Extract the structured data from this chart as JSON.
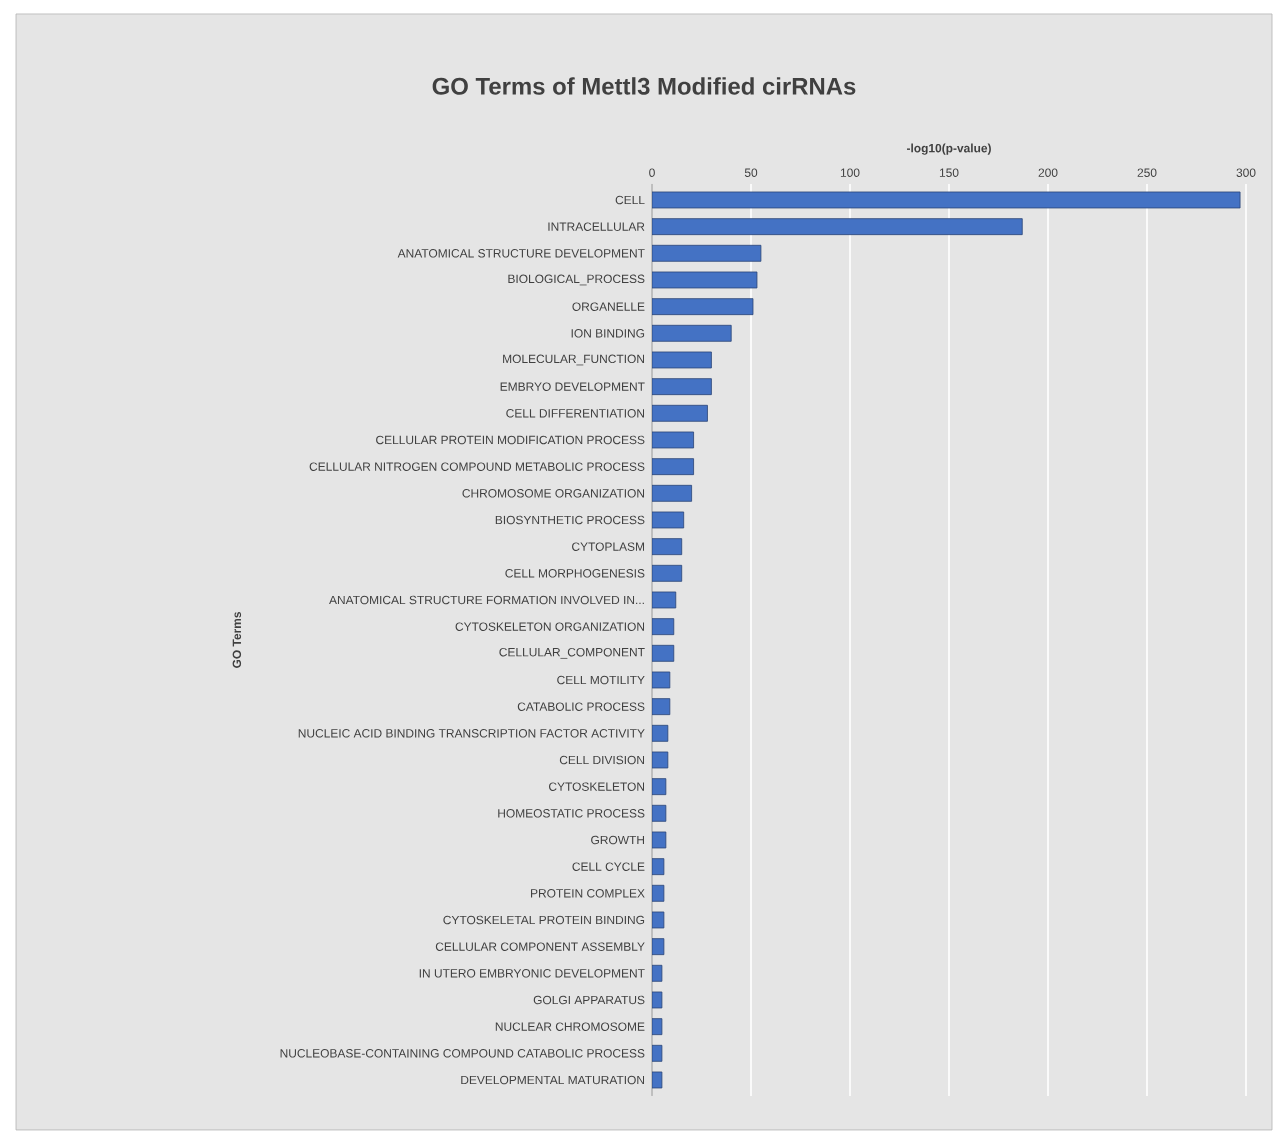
{
  "chart_data": {
    "type": "bar",
    "orientation": "horizontal",
    "title": "GO Terms of Mettl3 Modified cirRNAs",
    "xlabel": "-log10(p-value)",
    "ylabel": "GO Terms",
    "categories": [
      "CELL",
      "INTRACELLULAR",
      "ANATOMICAL STRUCTURE DEVELOPMENT",
      "BIOLOGICAL_PROCESS",
      "ORGANELLE",
      "ION BINDING",
      "MOLECULAR_FUNCTION",
      "EMBRYO DEVELOPMENT",
      "CELL DIFFERENTIATION",
      "CELLULAR PROTEIN MODIFICATION PROCESS",
      "CELLULAR NITROGEN COMPOUND METABOLIC PROCESS",
      "CHROMOSOME ORGANIZATION",
      "BIOSYNTHETIC PROCESS",
      "CYTOPLASM",
      "CELL MORPHOGENESIS",
      "ANATOMICAL STRUCTURE FORMATION INVOLVED IN...",
      "CYTOSKELETON ORGANIZATION",
      "CELLULAR_COMPONENT",
      "CELL MOTILITY",
      "CATABOLIC PROCESS",
      "NUCLEIC ACID BINDING TRANSCRIPTION FACTOR ACTIVITY",
      "CELL DIVISION",
      "CYTOSKELETON",
      "HOMEOSTATIC PROCESS",
      "GROWTH",
      "CELL CYCLE",
      "PROTEIN COMPLEX",
      "CYTOSKELETAL PROTEIN BINDING",
      "CELLULAR COMPONENT ASSEMBLY",
      "IN UTERO EMBRYONIC DEVELOPMENT",
      "GOLGI APPARATUS",
      "NUCLEAR CHROMOSOME",
      "NUCLEOBASE-CONTAINING COMPOUND CATABOLIC PROCESS",
      "DEVELOPMENTAL MATURATION"
    ],
    "values": [
      297,
      187,
      55,
      53,
      51,
      40,
      30,
      30,
      28,
      21,
      21,
      20,
      16,
      15,
      15,
      12,
      11,
      11,
      9,
      9,
      8,
      8,
      7,
      7,
      7,
      6,
      6,
      6,
      6,
      5,
      5,
      5,
      5,
      5
    ],
    "color": "#4472c4",
    "xlim": [
      0,
      300
    ],
    "xticks": [
      0,
      50,
      100,
      150,
      200,
      250,
      300
    ],
    "grid": "x"
  }
}
